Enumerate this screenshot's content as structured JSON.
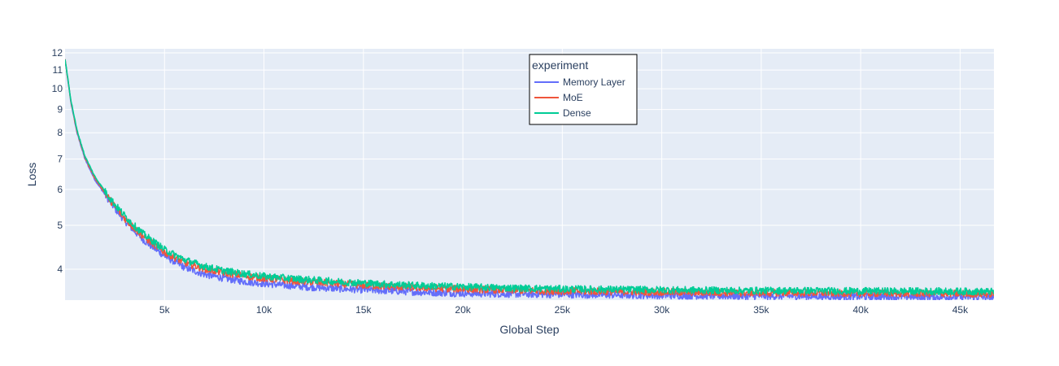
{
  "chart_data": {
    "type": "line",
    "xlabel": "Global Step",
    "ylabel": "Loss",
    "y_scale": "log",
    "xlim": [
      0,
      46700
    ],
    "ylim": [
      3.42,
      12.25
    ],
    "x_ticks": [
      5000,
      10000,
      15000,
      20000,
      25000,
      30000,
      35000,
      40000,
      45000
    ],
    "x_tick_labels": [
      "5k",
      "10k",
      "15k",
      "20k",
      "25k",
      "30k",
      "35k",
      "40k",
      "45k"
    ],
    "y_ticks": [
      4,
      5,
      6,
      7,
      8,
      9,
      10,
      11,
      12
    ],
    "y_tick_labels": [
      "4",
      "5",
      "6",
      "7",
      "8",
      "9",
      "10",
      "11",
      "12"
    ],
    "grid": true,
    "background": "#e5ecf6",
    "legend": {
      "title": "experiment",
      "position": "top-center"
    },
    "series": [
      {
        "name": "Memory Layer",
        "color": "#636efa",
        "x": [
          0,
          300,
          600,
          1000,
          1500,
          2000,
          2500,
          3000,
          3500,
          4000,
          5000,
          6000,
          7000,
          8000,
          9000,
          10000,
          12000,
          14000,
          16000,
          18000,
          20000,
          22000,
          25000,
          28000,
          31000,
          34000,
          37000,
          40000,
          43000,
          46700
        ],
        "y": [
          11.6,
          9.3,
          8.0,
          7.0,
          6.3,
          5.85,
          5.45,
          5.12,
          4.85,
          4.62,
          4.28,
          4.04,
          3.9,
          3.82,
          3.76,
          3.72,
          3.66,
          3.62,
          3.59,
          3.56,
          3.54,
          3.53,
          3.52,
          3.51,
          3.5,
          3.49,
          3.49,
          3.48,
          3.48,
          3.47
        ]
      },
      {
        "name": "MoE",
        "color": "#ef553b",
        "x": [
          0,
          300,
          600,
          1000,
          1500,
          2000,
          2500,
          3000,
          3500,
          4000,
          5000,
          6000,
          7000,
          8000,
          9000,
          10000,
          12000,
          14000,
          16000,
          18000,
          20000,
          22000,
          25000,
          28000,
          31000,
          34000,
          37000,
          40000,
          43000,
          46700
        ],
        "y": [
          11.6,
          9.35,
          8.05,
          7.05,
          6.35,
          5.9,
          5.5,
          5.18,
          4.92,
          4.7,
          4.36,
          4.14,
          4.01,
          3.93,
          3.87,
          3.82,
          3.76,
          3.71,
          3.67,
          3.64,
          3.62,
          3.6,
          3.58,
          3.57,
          3.56,
          3.55,
          3.55,
          3.54,
          3.54,
          3.53
        ]
      },
      {
        "name": "Dense",
        "color": "#00cc96",
        "x": [
          0,
          300,
          600,
          1000,
          1500,
          2000,
          2500,
          3000,
          3500,
          4000,
          5000,
          6000,
          7000,
          8000,
          9000,
          10000,
          12000,
          14000,
          16000,
          18000,
          20000,
          22000,
          25000,
          28000,
          31000,
          34000,
          37000,
          40000,
          43000,
          46700
        ],
        "y": [
          11.6,
          9.4,
          8.1,
          7.1,
          6.4,
          5.95,
          5.56,
          5.25,
          4.98,
          4.76,
          4.42,
          4.2,
          4.06,
          3.97,
          3.91,
          3.86,
          3.8,
          3.75,
          3.71,
          3.68,
          3.66,
          3.64,
          3.62,
          3.61,
          3.6,
          3.59,
          3.59,
          3.58,
          3.58,
          3.57
        ]
      }
    ]
  }
}
